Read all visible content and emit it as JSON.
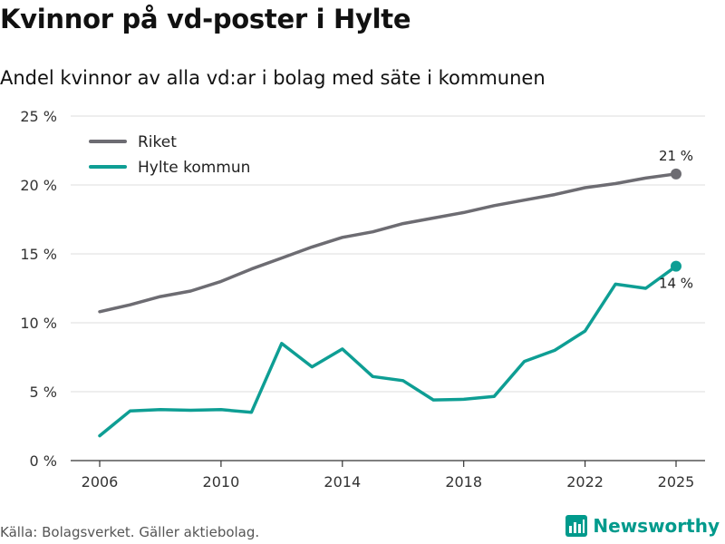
{
  "header": {
    "title": "Kvinnor på vd-poster i Hylte",
    "subtitle": "Andel kvinnor av alla vd:ar i bolag med säte i kommunen"
  },
  "footer": {
    "source": "Källa: Bolagsverket. Gäller aktiebolag.",
    "brand": "Newsworthy",
    "brand_color": "#009a8c"
  },
  "chart_data": {
    "type": "line",
    "title": "Kvinnor på vd-poster i Hylte",
    "subtitle": "Andel kvinnor av alla vd:ar i bolag med säte i kommunen",
    "xlabel": "",
    "ylabel": "",
    "x": [
      2006,
      2007,
      2008,
      2009,
      2010,
      2011,
      2012,
      2013,
      2014,
      2015,
      2016,
      2017,
      2018,
      2019,
      2020,
      2021,
      2022,
      2023,
      2024,
      2025
    ],
    "xticks": [
      2006,
      2010,
      2014,
      2018,
      2022,
      2025
    ],
    "xlim": [
      2006,
      2025
    ],
    "ylim": [
      0,
      25
    ],
    "yticks": [
      0,
      5,
      10,
      15,
      20,
      25
    ],
    "ytick_labels": [
      "0 %",
      "5 %",
      "10 %",
      "15 %",
      "20 %",
      "25 %"
    ],
    "grid": true,
    "legend_position": "top-left",
    "series": [
      {
        "name": "Riket",
        "color": "#6d6c72",
        "values": [
          10.8,
          11.3,
          11.9,
          12.3,
          13.0,
          13.9,
          14.7,
          15.5,
          16.2,
          16.6,
          17.2,
          17.6,
          18.0,
          18.5,
          18.9,
          19.3,
          19.8,
          20.1,
          20.5,
          20.8
        ],
        "end_label": "21 %"
      },
      {
        "name": "Hylte kommun",
        "color": "#0e9e94",
        "values": [
          1.8,
          3.6,
          3.7,
          3.65,
          3.7,
          3.5,
          8.5,
          6.8,
          8.1,
          6.1,
          5.8,
          4.4,
          4.45,
          4.65,
          7.2,
          8.0,
          9.4,
          12.8,
          12.5,
          14.1
        ],
        "end_label": "14 %"
      }
    ]
  }
}
